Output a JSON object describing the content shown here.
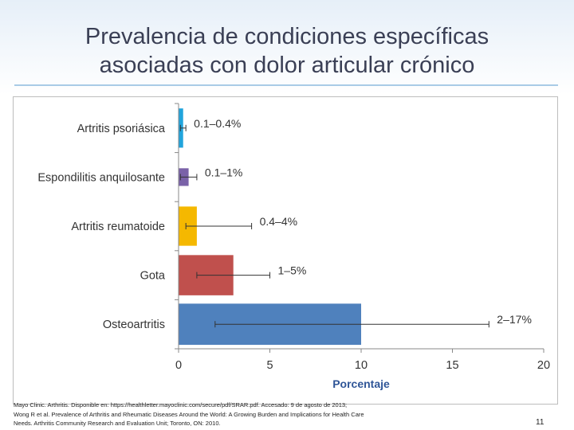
{
  "title_line1": "Prevalencia de condiciones específicas",
  "title_line2": "asociadas con dolor articular crónico",
  "chart_data": {
    "type": "bar",
    "orientation": "horizontal",
    "categories": [
      "Artritis psoriásica",
      "Espondilitis anquilosante",
      "Artritis reumatoide",
      "Gota",
      "Osteoartritis"
    ],
    "values": [
      0.25,
      0.55,
      1.0,
      3.0,
      10.0
    ],
    "error_low": [
      0.1,
      0.1,
      0.4,
      1,
      2
    ],
    "error_high": [
      0.4,
      1,
      4,
      5,
      17
    ],
    "data_labels": [
      "0.1–0.4%",
      "0.1–1%",
      "0.4–4%",
      "1–5%",
      "2–17%"
    ],
    "colors": [
      "#21a4dc",
      "#7a62a8",
      "#f5b800",
      "#c0504d",
      "#4f81bd"
    ],
    "xlabel": "Porcentaje",
    "xlim": [
      0,
      20
    ],
    "xticks": [
      0,
      5,
      10,
      15,
      20
    ],
    "legend": "none",
    "grid": false
  },
  "footnote": {
    "line1": "Mayo Clinic. Arthritis. Disponible en: https://healthletter.mayoclinic.com/secure/pdf/SRAR.pdf. Accesado: 9 de agosto de 2013;",
    "line2": "Wong R et al. Prevalence of Arthritis and Rheumatic Diseases Around the World: A Growing Burden and Implications for Health Care",
    "line3": "Needs. Arthritis Community Research and Evaluation Unit; Toronto, ON: 2010."
  },
  "slide_number": "11"
}
